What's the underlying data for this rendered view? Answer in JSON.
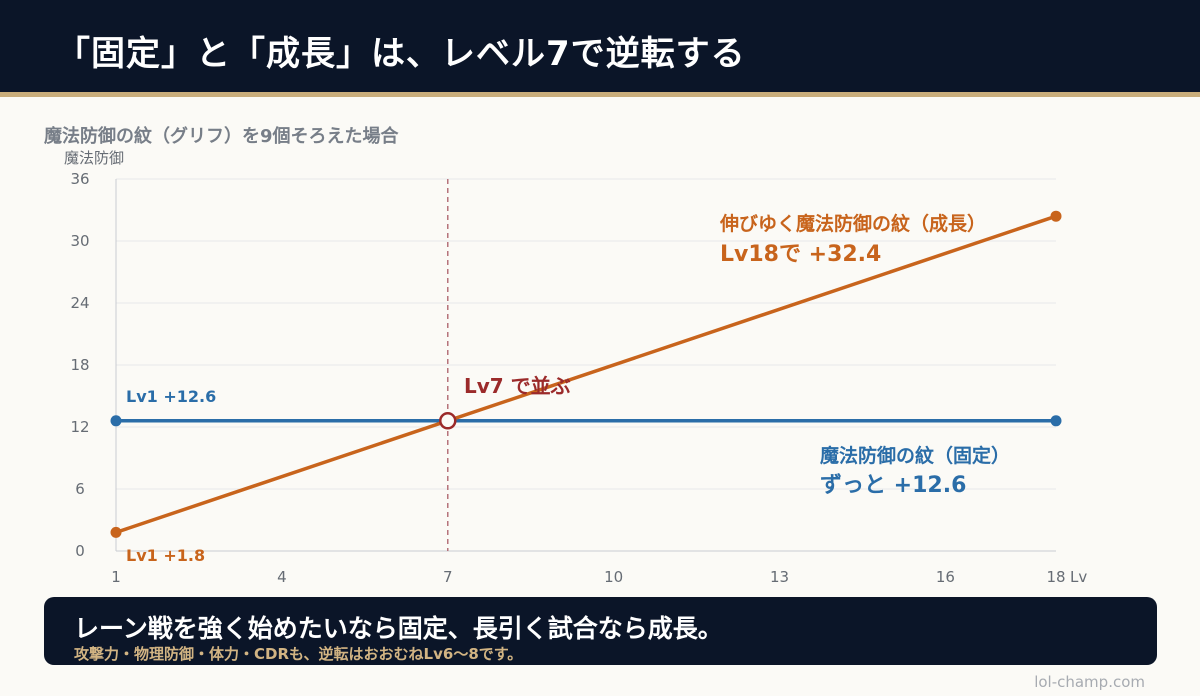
{
  "header": {
    "title": "「固定」と「成長」は、レベル7で逆転する"
  },
  "chart_data": {
    "type": "line",
    "title": "魔法防御の紋（グリフ）を9個そろえた場合",
    "ylabel": "魔法防御",
    "xlabel": "Lv",
    "xlim": [
      1,
      18
    ],
    "ylim": [
      0,
      36
    ],
    "x_ticks": [
      1,
      4,
      7,
      10,
      13,
      16,
      18
    ],
    "y_ticks": [
      0,
      6,
      12,
      18,
      24,
      30,
      36
    ],
    "grid": true,
    "series": [
      {
        "name": "魔法防御の紋（固定）",
        "color": "#2a6da8",
        "points": [
          [
            1,
            12.6
          ],
          [
            18,
            12.6
          ]
        ]
      },
      {
        "name": "伸びゆく魔法防御の紋（成長）",
        "color": "#c8641c",
        "points": [
          [
            1,
            1.8
          ],
          [
            18,
            32.4
          ]
        ]
      }
    ],
    "crossover": {
      "x": 7,
      "y": 12.6,
      "color": "#9b2a2a",
      "label": "Lv7 で並ぶ"
    },
    "annotations": {
      "fixed_start": "Lv1  +12.6",
      "growth_start": "Lv1  +1.8",
      "fixed_name": "魔法防御の紋（固定）",
      "fixed_value": "ずっと +12.6",
      "growth_name": "伸びゆく魔法防御の紋（成長）",
      "growth_value": "Lv18で +32.4"
    }
  },
  "banner": {
    "main": "レーン戦を強く始めたいなら固定、長引く試合なら成長。",
    "sub": "攻撃力・物理防御・体力・CDRも、逆転はおおむねLv6〜8です。"
  },
  "footer": {
    "site": "lol-champ.com"
  },
  "colors": {
    "header_bg": "#0b1528",
    "accent_gold": "#c9ad7b",
    "fixed_blue": "#2a6da8",
    "growth_orange": "#c8641c",
    "crossover_red": "#9b2a2a"
  }
}
